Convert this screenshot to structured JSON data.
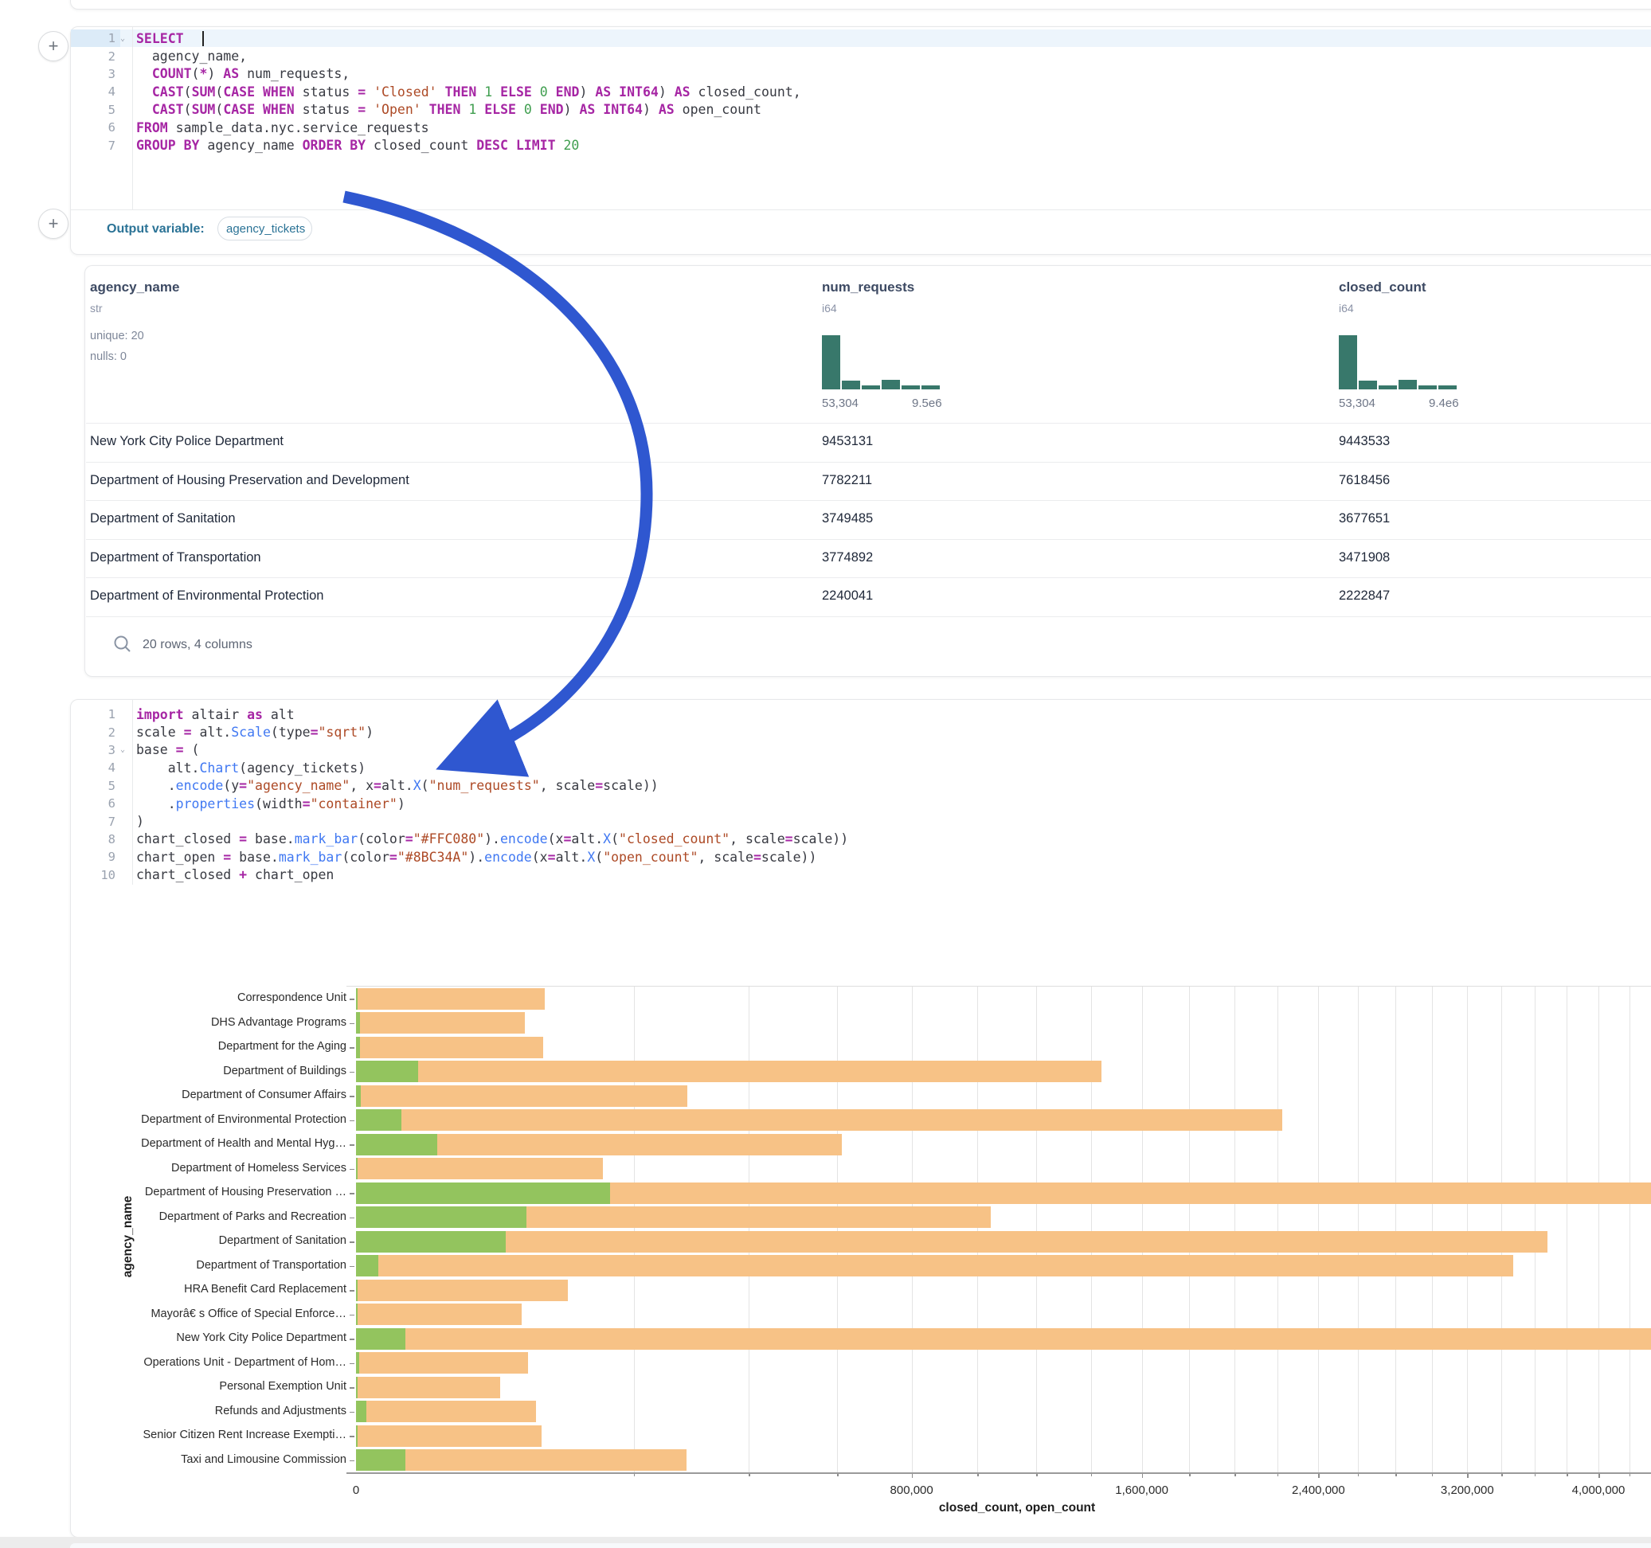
{
  "sql_cell": {
    "active_line": 1,
    "chevron_line": 1,
    "lines": [
      [
        [
          "SELECT",
          "k"
        ]
      ],
      [
        [
          "  agency_name,",
          "d"
        ]
      ],
      [
        [
          "  ",
          "d"
        ],
        [
          "COUNT",
          "k"
        ],
        [
          "(",
          "d"
        ],
        [
          "*",
          "k"
        ],
        [
          ") ",
          "d"
        ],
        [
          "AS",
          "k"
        ],
        [
          " num_requests,",
          "d"
        ]
      ],
      [
        [
          "  ",
          "d"
        ],
        [
          "CAST",
          "k"
        ],
        [
          "(",
          "d"
        ],
        [
          "SUM",
          "k"
        ],
        [
          "(",
          "d"
        ],
        [
          "CASE",
          "k"
        ],
        [
          " ",
          "d"
        ],
        [
          "WHEN",
          "k"
        ],
        [
          " status ",
          "d"
        ],
        [
          "=",
          "k"
        ],
        [
          " ",
          "d"
        ],
        [
          "'Closed'",
          "s"
        ],
        [
          " ",
          "d"
        ],
        [
          "THEN",
          "k"
        ],
        [
          " ",
          "d"
        ],
        [
          "1",
          "n"
        ],
        [
          " ",
          "d"
        ],
        [
          "ELSE",
          "k"
        ],
        [
          " ",
          "d"
        ],
        [
          "0",
          "n"
        ],
        [
          " ",
          "d"
        ],
        [
          "END",
          "k"
        ],
        [
          ") ",
          "d"
        ],
        [
          "AS",
          "k"
        ],
        [
          " ",
          "d"
        ],
        [
          "INT64",
          "k"
        ],
        [
          ") ",
          "d"
        ],
        [
          "AS",
          "k"
        ],
        [
          " closed_count,",
          "d"
        ]
      ],
      [
        [
          "  ",
          "d"
        ],
        [
          "CAST",
          "k"
        ],
        [
          "(",
          "d"
        ],
        [
          "SUM",
          "k"
        ],
        [
          "(",
          "d"
        ],
        [
          "CASE",
          "k"
        ],
        [
          " ",
          "d"
        ],
        [
          "WHEN",
          "k"
        ],
        [
          " status ",
          "d"
        ],
        [
          "=",
          "k"
        ],
        [
          " ",
          "d"
        ],
        [
          "'Open'",
          "s"
        ],
        [
          " ",
          "d"
        ],
        [
          "THEN",
          "k"
        ],
        [
          " ",
          "d"
        ],
        [
          "1",
          "n"
        ],
        [
          " ",
          "d"
        ],
        [
          "ELSE",
          "k"
        ],
        [
          " ",
          "d"
        ],
        [
          "0",
          "n"
        ],
        [
          " ",
          "d"
        ],
        [
          "END",
          "k"
        ],
        [
          ") ",
          "d"
        ],
        [
          "AS",
          "k"
        ],
        [
          " ",
          "d"
        ],
        [
          "INT64",
          "k"
        ],
        [
          ") ",
          "d"
        ],
        [
          "AS",
          "k"
        ],
        [
          " open_count",
          "d"
        ]
      ],
      [
        [
          "FROM",
          "k"
        ],
        [
          " sample_data.nyc.service_requests",
          "d"
        ]
      ],
      [
        [
          "GROUP BY",
          "k"
        ],
        [
          " agency_name ",
          "d"
        ],
        [
          "ORDER BY",
          "k"
        ],
        [
          " closed_count ",
          "d"
        ],
        [
          "DESC",
          "k"
        ],
        [
          " ",
          "d"
        ],
        [
          "LIMIT",
          "k"
        ],
        [
          " ",
          "d"
        ],
        [
          "20",
          "n"
        ]
      ]
    ]
  },
  "output_variable": {
    "label": "Output variable:",
    "value": "agency_tickets"
  },
  "result_table": {
    "columns": [
      {
        "name": "agency_name",
        "type": "str",
        "stats": [
          "unique: 20",
          "nulls: 0"
        ]
      },
      {
        "name": "num_requests",
        "type": "i64",
        "hist_min": "53,304",
        "hist_max": "9.5e6",
        "hist_bins": [
          1,
          0.16,
          0.08,
          0.17,
          0.08,
          0.07
        ]
      },
      {
        "name": "closed_count",
        "type": "i64",
        "hist_min": "53,304",
        "hist_max": "9.4e6",
        "hist_bins": [
          1,
          0.16,
          0.08,
          0.17,
          0.08,
          0.07
        ]
      }
    ],
    "rows": [
      [
        "New York City Police Department",
        "9453131",
        "9443533"
      ],
      [
        "Department of Housing Preservation and Development",
        "7782211",
        "7618456"
      ],
      [
        "Department of Sanitation",
        "3749485",
        "3677651"
      ],
      [
        "Department of Transportation",
        "3774892",
        "3471908"
      ],
      [
        "Department of Environmental Protection",
        "2240041",
        "2222847"
      ]
    ],
    "footer": "20 rows, 4 columns"
  },
  "python_cell": {
    "active_line": -1,
    "chevron_line": 3,
    "lines": [
      [
        [
          "import",
          "k"
        ],
        [
          " altair ",
          "d"
        ],
        [
          "as",
          "k"
        ],
        [
          " alt",
          "d"
        ]
      ],
      [
        [
          "scale ",
          "d"
        ],
        [
          "=",
          "k"
        ],
        [
          " alt.",
          "d"
        ],
        [
          "Scale",
          "f"
        ],
        [
          "(type",
          "d"
        ],
        [
          "=",
          "k"
        ],
        [
          "\"sqrt\"",
          "s"
        ],
        [
          ")",
          "d"
        ]
      ],
      [
        [
          "base ",
          "d"
        ],
        [
          "=",
          "k"
        ],
        [
          " (",
          "d"
        ]
      ],
      [
        [
          "    alt.",
          "d"
        ],
        [
          "Chart",
          "f"
        ],
        [
          "(agency_tickets)",
          "d"
        ]
      ],
      [
        [
          "    .",
          "d"
        ],
        [
          "encode",
          "f"
        ],
        [
          "(y",
          "d"
        ],
        [
          "=",
          "k"
        ],
        [
          "\"agency_name\"",
          "s"
        ],
        [
          ", x",
          "d"
        ],
        [
          "=",
          "k"
        ],
        [
          "alt.",
          "d"
        ],
        [
          "X",
          "f"
        ],
        [
          "(",
          "d"
        ],
        [
          "\"num_requests\"",
          "s"
        ],
        [
          ", scale",
          "d"
        ],
        [
          "=",
          "k"
        ],
        [
          "scale))",
          "d"
        ]
      ],
      [
        [
          "    .",
          "d"
        ],
        [
          "properties",
          "f"
        ],
        [
          "(width",
          "d"
        ],
        [
          "=",
          "k"
        ],
        [
          "\"container\"",
          "s"
        ],
        [
          ")",
          "d"
        ]
      ],
      [
        [
          ")",
          "d"
        ]
      ],
      [
        [
          "chart_closed ",
          "d"
        ],
        [
          "=",
          "k"
        ],
        [
          " base.",
          "d"
        ],
        [
          "mark_bar",
          "f"
        ],
        [
          "(color",
          "d"
        ],
        [
          "=",
          "k"
        ],
        [
          "\"#FFC080\"",
          "s"
        ],
        [
          ").",
          "d"
        ],
        [
          "encode",
          "f"
        ],
        [
          "(x",
          "d"
        ],
        [
          "=",
          "k"
        ],
        [
          "alt.",
          "d"
        ],
        [
          "X",
          "f"
        ],
        [
          "(",
          "d"
        ],
        [
          "\"closed_count\"",
          "s"
        ],
        [
          ", scale",
          "d"
        ],
        [
          "=",
          "k"
        ],
        [
          "scale))",
          "d"
        ]
      ],
      [
        [
          "chart_open ",
          "d"
        ],
        [
          "=",
          "k"
        ],
        [
          " base.",
          "d"
        ],
        [
          "mark_bar",
          "f"
        ],
        [
          "(color",
          "d"
        ],
        [
          "=",
          "k"
        ],
        [
          "\"#8BC34A\"",
          "s"
        ],
        [
          ").",
          "d"
        ],
        [
          "encode",
          "f"
        ],
        [
          "(x",
          "d"
        ],
        [
          "=",
          "k"
        ],
        [
          "alt.",
          "d"
        ],
        [
          "X",
          "f"
        ],
        [
          "(",
          "d"
        ],
        [
          "\"open_count\"",
          "s"
        ],
        [
          ", scale",
          "d"
        ],
        [
          "=",
          "k"
        ],
        [
          "scale))",
          "d"
        ]
      ],
      [
        [
          "chart_closed ",
          "d"
        ],
        [
          "+",
          "k"
        ],
        [
          " chart_open",
          "d"
        ]
      ]
    ]
  },
  "chart_data": {
    "type": "bar",
    "orientation": "horizontal",
    "scale": "sqrt",
    "xlabel": "closed_count, open_count",
    "ylabel": "agency_name",
    "x_domain": [
      0,
      9443533
    ],
    "x_tick_labels": [
      "0",
      "800,000",
      "1,600,000",
      "2,400,000",
      "3,200,000",
      "4,000,000"
    ],
    "x_tick_values": [
      0,
      800000,
      1600000,
      2400000,
      3200000,
      4000000
    ],
    "minor_tick_step": 200000,
    "grid": true,
    "series": [
      {
        "name": "closed_count",
        "color": "#F7C286"
      },
      {
        "name": "open_count",
        "color": "#93C45E"
      }
    ],
    "categories": [
      "Correspondence Unit",
      "DHS Advantage Programs",
      "Department for the Aging",
      "Department of Buildings",
      "Department of Consumer Affairs",
      "Department of Environmental Protection",
      "Department of Health and Mental Hyg…",
      "Department of Homeless Services",
      "Department of Housing Preservation …",
      "Department of Parks and Recreation",
      "Department of Sanitation",
      "Department of Transportation",
      "HRA Benefit Card Replacement",
      "Mayorâ€ s Office of Special Enforce…",
      "New York City Police Department",
      "Operations Unit - Department of Hom…",
      "Personal Exemption Unit",
      "Refunds and Adjustments",
      "Senior Citizen Rent Increase Exempti…",
      "Taxi and Limousine Commission"
    ],
    "closed_values": [
      92000,
      74000,
      91000,
      1440000,
      284000,
      2222847,
      612000,
      158000,
      7618456,
      1044000,
      3677651,
      3471908,
      116000,
      71000,
      9443533,
      77000,
      54000,
      84000,
      89000,
      283000
    ],
    "open_values": [
      10,
      40,
      40,
      10000,
      50,
      5300,
      17100,
      10,
      167000,
      75000,
      58000,
      1300,
      10,
      10,
      6300,
      30,
      5,
      280,
      10,
      6300
    ]
  },
  "colors": {
    "histogram": "#38786b",
    "closed_bar": "#F7C286",
    "open_bar": "#93C45E",
    "arrow": "#2f57d0"
  }
}
